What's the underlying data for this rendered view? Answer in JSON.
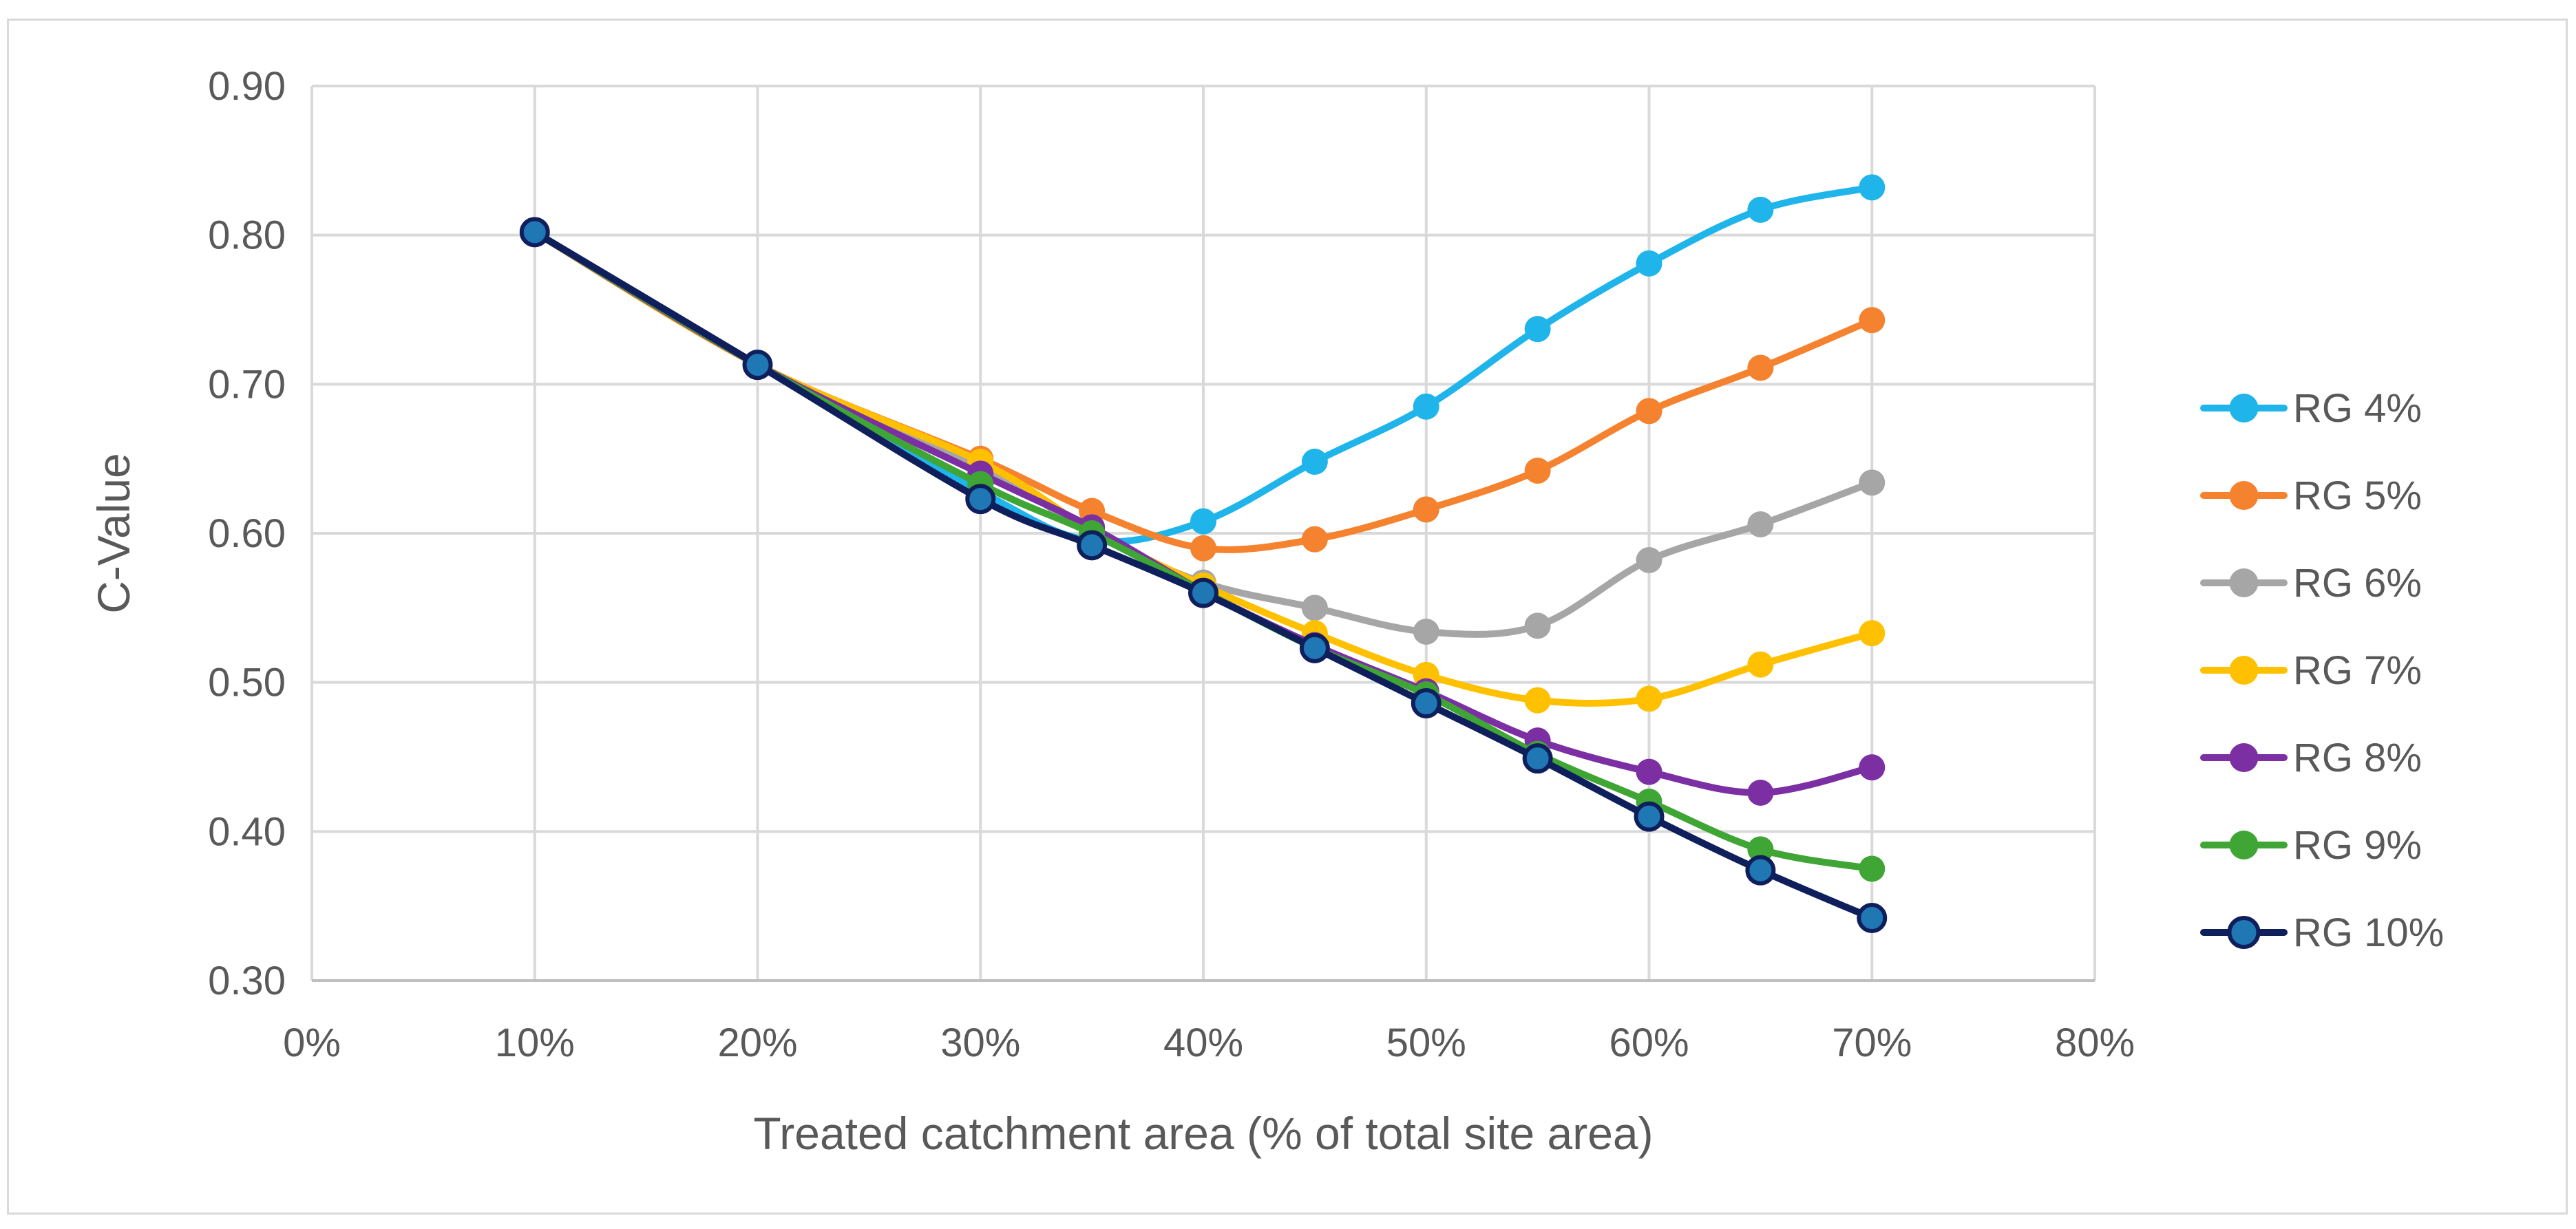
{
  "chart_data": {
    "type": "line",
    "title": "",
    "xlabel": "Treated catchment area (% of total site area)",
    "ylabel": "C-Value",
    "xlim": [
      0,
      80
    ],
    "ylim": [
      0.3,
      0.9
    ],
    "x_ticks": [
      "0%",
      "10%",
      "20%",
      "30%",
      "40%",
      "50%",
      "60%",
      "70%",
      "80%"
    ],
    "y_ticks": [
      "0.90",
      "0.80",
      "0.70",
      "0.60",
      "0.50",
      "0.40",
      "0.30"
    ],
    "grid": true,
    "legend_position": "right",
    "smooth": true,
    "x": [
      10,
      20,
      30,
      35,
      40,
      45,
      50,
      55,
      60,
      65,
      70
    ],
    "series": [
      {
        "name": "RG 4%",
        "color": "#1fb4ea",
        "values": [
          0.802,
          0.713,
          0.628,
          0.595,
          0.608,
          0.648,
          0.685,
          0.737,
          0.781,
          0.817,
          0.832
        ]
      },
      {
        "name": "RG 5%",
        "color": "#f5822f",
        "values": [
          0.802,
          0.713,
          0.65,
          0.615,
          0.59,
          0.596,
          0.616,
          0.642,
          0.682,
          0.711,
          0.743
        ]
      },
      {
        "name": "RG 6%",
        "color": "#a6a6a6",
        "values": [
          0.802,
          0.713,
          0.645,
          0.6,
          0.567,
          0.55,
          0.534,
          0.538,
          0.582,
          0.606,
          0.634
        ]
      },
      {
        "name": "RG 7%",
        "color": "#ffc000",
        "values": [
          0.802,
          0.713,
          0.648,
          0.602,
          0.565,
          0.533,
          0.505,
          0.488,
          0.489,
          0.512,
          0.533
        ]
      },
      {
        "name": "RG 8%",
        "color": "#7b2fa3",
        "values": [
          0.802,
          0.713,
          0.64,
          0.604,
          0.561,
          0.525,
          0.494,
          0.461,
          0.44,
          0.426,
          0.443
        ]
      },
      {
        "name": "RG 9%",
        "color": "#3fa535",
        "values": [
          0.802,
          0.713,
          0.633,
          0.6,
          0.561,
          0.523,
          0.492,
          0.452,
          0.42,
          0.388,
          0.375
        ]
      },
      {
        "name": "RG 10%",
        "color": "#0f1f5c",
        "marker_fill": "#1f77b4",
        "values": [
          0.802,
          0.713,
          0.623,
          0.592,
          0.56,
          0.523,
          0.486,
          0.449,
          0.41,
          0.374,
          0.342
        ]
      }
    ]
  }
}
